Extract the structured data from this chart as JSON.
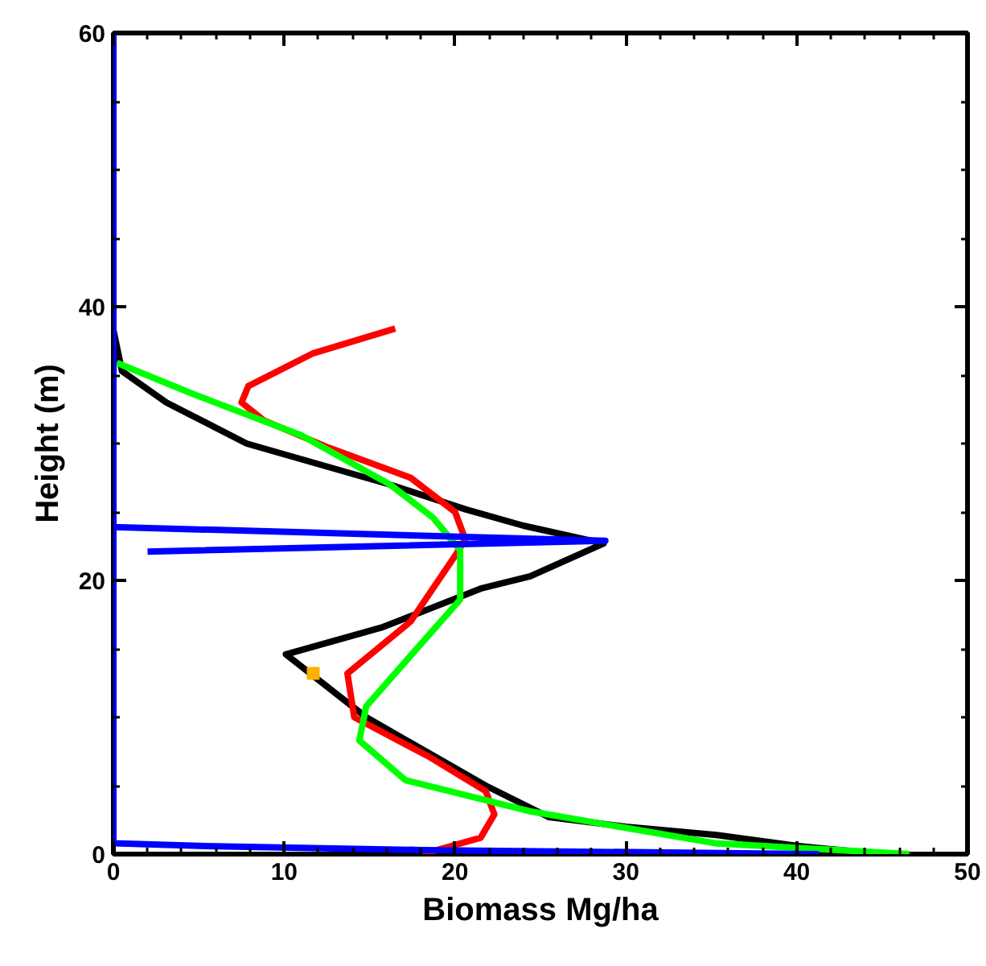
{
  "chart_data": {
    "type": "line",
    "xlabel": "Biomass Mg/ha",
    "ylabel": "Height (m)",
    "xlim": [
      0,
      50
    ],
    "ylim": [
      0,
      60
    ],
    "xticks": [
      0,
      10,
      20,
      30,
      40,
      50
    ],
    "yticks": [
      0,
      20,
      40,
      60
    ],
    "grid": false,
    "marker": "none",
    "line_style": "solid",
    "series": [
      {
        "color": "#000000",
        "x": [
          0,
          0.5,
          3.1,
          7.8,
          12,
          16.2,
          20.6,
          24,
          28.7,
          24.4,
          21.5,
          15.8,
          10.1,
          14.8,
          21.8,
          25.5,
          30,
          35.3,
          40,
          45
        ],
        "values": [
          38.3,
          35.3,
          33,
          30,
          28.5,
          27,
          25.2,
          24,
          22.7,
          20.3,
          19.4,
          16.6,
          14.6,
          10,
          5,
          2.7,
          2,
          1.4,
          0.6,
          0
        ]
      },
      {
        "color": "#ff0000",
        "x": [
          16.5,
          11.7,
          7.9,
          7.5,
          8.8,
          12.6,
          17.4,
          20,
          20.6,
          20,
          17.4,
          13.7,
          14.1,
          18.5,
          21.8,
          22.3,
          21.5,
          18.1
        ],
        "values": [
          38.4,
          36.6,
          34.2,
          33,
          31.7,
          29.7,
          27.5,
          25,
          23,
          21.8,
          17,
          13.2,
          10,
          7.1,
          4.6,
          2.9,
          1.2,
          0
        ]
      },
      {
        "color": "#00ff00",
        "x": [
          0.2,
          4.7,
          11,
          16.2,
          18.7,
          20.3,
          20.3,
          17.4,
          14.8,
          14.4,
          17.1,
          24.5,
          35.2,
          46.6
        ],
        "values": [
          35.9,
          33.6,
          30.6,
          27,
          24.6,
          22.2,
          18.6,
          14.5,
          10.8,
          8.3,
          5.4,
          3.1,
          0.8,
          0
        ]
      },
      {
        "color": "#0000ff",
        "x": [
          0,
          0,
          28.8,
          2
        ],
        "values": [
          60,
          23.9,
          22.9,
          22.1
        ]
      },
      {
        "color": "#0000ff",
        "x": [
          0,
          0,
          5,
          18,
          41.3
        ],
        "values": [
          23.9,
          0.8,
          0.6,
          0.3,
          0
        ]
      },
      {
        "type": "scatter",
        "marker": "square",
        "color": "#ffb000",
        "x": [
          11.7
        ],
        "values": [
          13.2
        ]
      }
    ]
  }
}
